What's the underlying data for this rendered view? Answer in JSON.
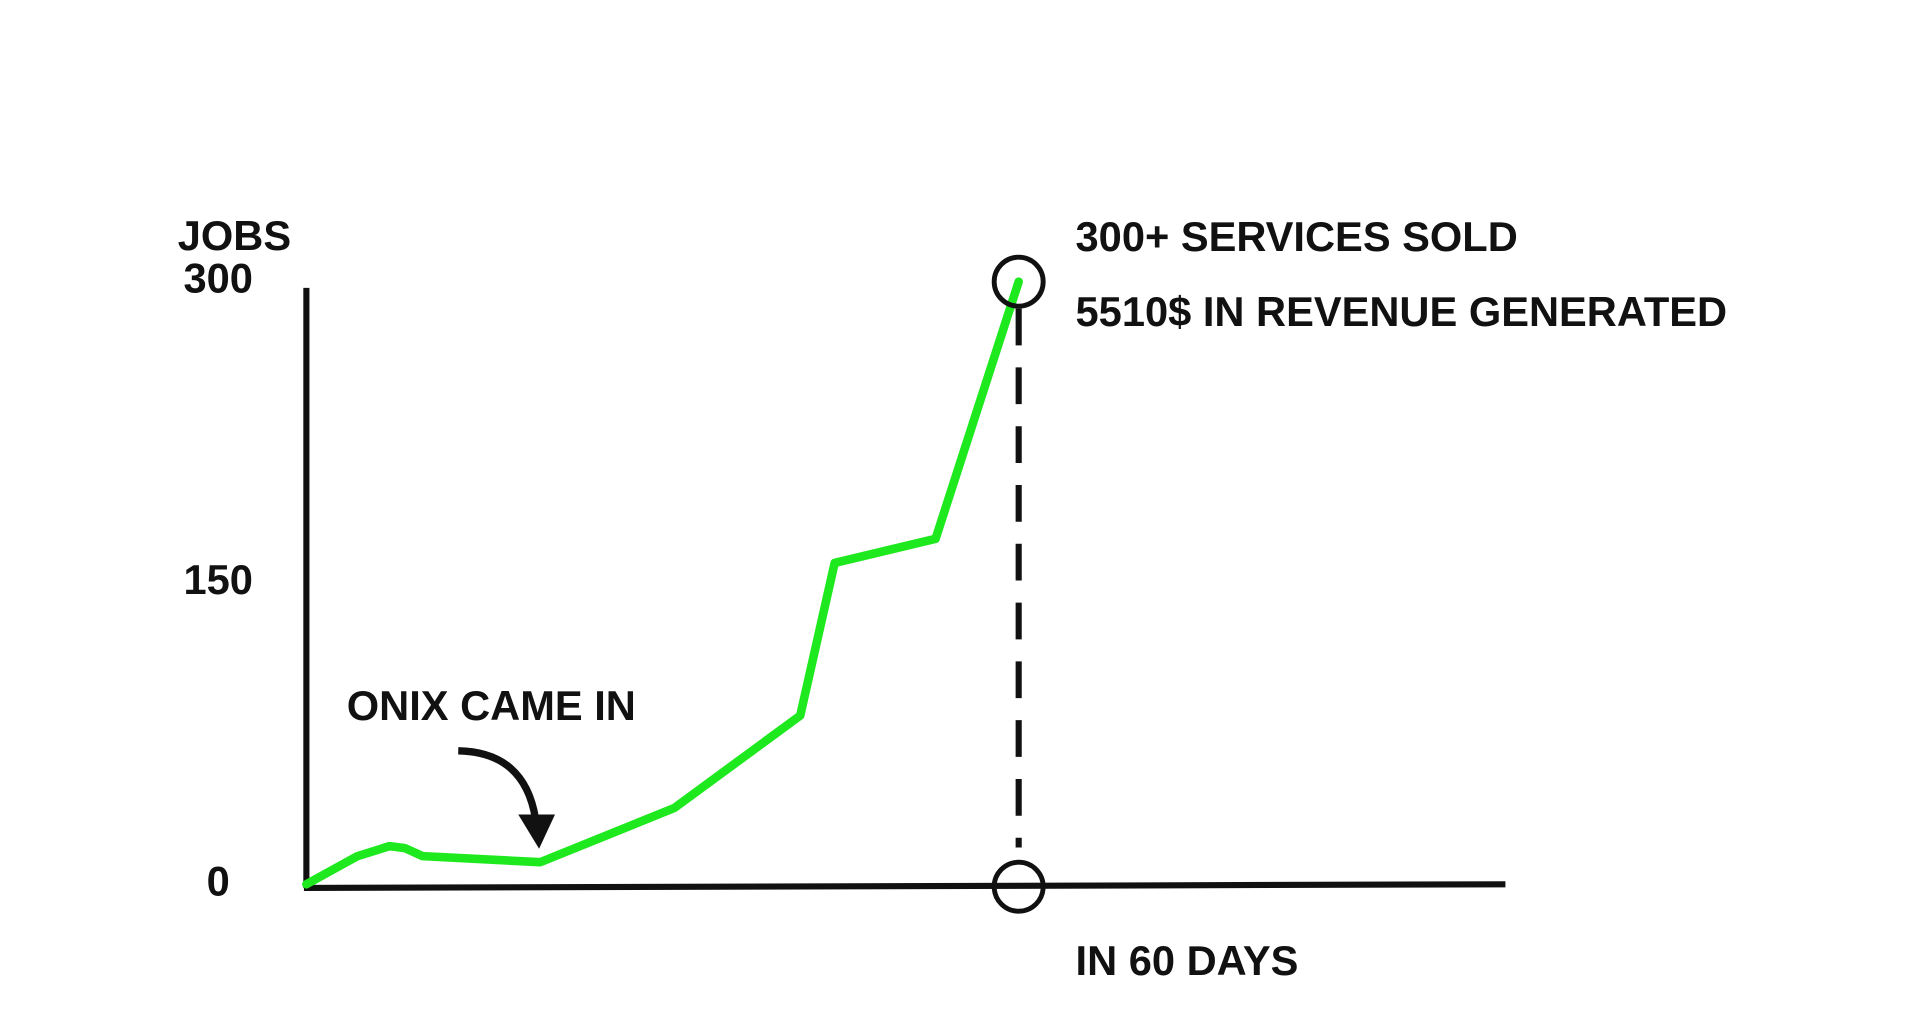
{
  "chart_data": {
    "type": "line",
    "ylabel": "JOBS",
    "xlabel": "IN 60 DAYS",
    "annotations": [
      "ONIX CAME IN",
      "300+ SERVICES SOLD",
      "5510$ IN REVENUE GENERATED"
    ],
    "x": [
      0,
      4.3,
      7,
      8.3,
      9.8,
      19.7,
      31,
      41.6,
      44.5,
      53,
      60
    ],
    "values": [
      0,
      14,
      19,
      18,
      14,
      11,
      38,
      84,
      160,
      172,
      300
    ],
    "color": "#1ee81e",
    "xlim": [
      0,
      101
    ],
    "ylim": [
      0,
      300
    ],
    "yticks": [
      0,
      150,
      300
    ],
    "grid": false
  }
}
